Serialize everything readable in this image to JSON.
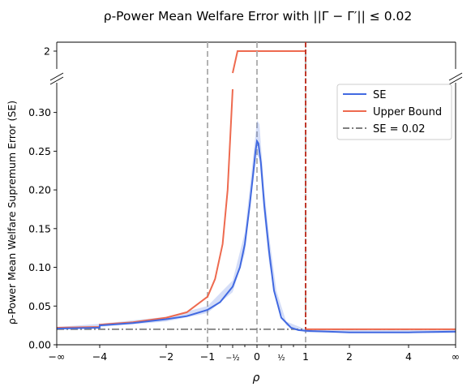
{
  "chart_data": {
    "type": "line",
    "title": "ρ-Power Mean Welfare Error with ||Γ − Γ′|| ≤ 0.02",
    "xlabel": "ρ",
    "ylabel": "ρ-Power Mean Welfare Supremum Error (SE)",
    "x_tick_labels": [
      "−∞",
      "−4",
      "−2",
      "−1",
      "−½",
      "0",
      "½",
      "1",
      "2",
      "4",
      "∞"
    ],
    "y_tick_labels": [
      "0.00",
      "0.05",
      "0.10",
      "0.15",
      "0.20",
      "0.25",
      "0.30"
    ],
    "y_upper_tick_label": "2",
    "ylim": [
      0,
      0.33
    ],
    "y_upper_value": 2,
    "legend_position": "upper-right",
    "vertical_reference_lines": [
      -1,
      0,
      1
    ],
    "series": [
      {
        "name": "SE",
        "color": "#4169e1",
        "points": [
          [
            -1000,
            0.021
          ],
          [
            -6,
            0.022
          ],
          [
            -5,
            0.023
          ],
          [
            -4,
            0.025
          ],
          [
            -3,
            0.028
          ],
          [
            -2,
            0.033
          ],
          [
            -1.5,
            0.037
          ],
          [
            -1,
            0.045
          ],
          [
            -0.75,
            0.055
          ],
          [
            -0.5,
            0.075
          ],
          [
            -0.35,
            0.1
          ],
          [
            -0.25,
            0.13
          ],
          [
            -0.15,
            0.18
          ],
          [
            -0.08,
            0.22
          ],
          [
            -0.03,
            0.25
          ],
          [
            0,
            0.263
          ],
          [
            0.03,
            0.26
          ],
          [
            0.08,
            0.235
          ],
          [
            0.15,
            0.18
          ],
          [
            0.25,
            0.12
          ],
          [
            0.35,
            0.07
          ],
          [
            0.5,
            0.035
          ],
          [
            0.7,
            0.022
          ],
          [
            0.85,
            0.019
          ],
          [
            1,
            0.018
          ],
          [
            1.5,
            0.017
          ],
          [
            2,
            0.016
          ],
          [
            4,
            0.016
          ],
          [
            1000,
            0.017
          ]
        ],
        "band_upper": [
          [
            -1000,
            0.023
          ],
          [
            -4,
            0.027
          ],
          [
            -2,
            0.036
          ],
          [
            -1,
            0.05
          ],
          [
            -0.5,
            0.083
          ],
          [
            -0.25,
            0.145
          ],
          [
            -0.1,
            0.23
          ],
          [
            0,
            0.29
          ],
          [
            0.05,
            0.285
          ],
          [
            0.15,
            0.2
          ],
          [
            0.25,
            0.14
          ],
          [
            0.4,
            0.07
          ],
          [
            0.6,
            0.03
          ],
          [
            1,
            0.02
          ],
          [
            1000,
            0.019
          ]
        ],
        "band_lower": [
          [
            -1000,
            0.019
          ],
          [
            -4,
            0.023
          ],
          [
            -2,
            0.03
          ],
          [
            -1,
            0.041
          ],
          [
            -0.5,
            0.068
          ],
          [
            -0.25,
            0.118
          ],
          [
            -0.1,
            0.2
          ],
          [
            0,
            0.245
          ],
          [
            0.05,
            0.24
          ],
          [
            0.15,
            0.165
          ],
          [
            0.25,
            0.105
          ],
          [
            0.4,
            0.055
          ],
          [
            0.6,
            0.025
          ],
          [
            1,
            0.016
          ],
          [
            1000,
            0.015
          ]
        ]
      },
      {
        "name": "Upper Bound",
        "color": "#ee6a4f",
        "points": [
          [
            -1000,
            0.022
          ],
          [
            -6,
            0.023
          ],
          [
            -5,
            0.024
          ],
          [
            -4,
            0.026
          ],
          [
            -3,
            0.029
          ],
          [
            -2,
            0.035
          ],
          [
            -1.5,
            0.042
          ],
          [
            -1,
            0.062
          ],
          [
            -0.85,
            0.085
          ],
          [
            -0.7,
            0.13
          ],
          [
            -0.6,
            0.2
          ],
          [
            -0.5,
            0.33
          ]
        ],
        "upper_panel_points": [
          [
            -0.5,
            1.4
          ],
          [
            -0.4,
            2
          ],
          [
            1,
            2
          ]
        ],
        "after_points": [
          [
            1,
            0.02
          ],
          [
            1000,
            0.02
          ]
        ]
      },
      {
        "name": "SE = 0.02",
        "color": "#7f7f7f",
        "style": "dash-dot",
        "value": 0.02
      }
    ]
  }
}
